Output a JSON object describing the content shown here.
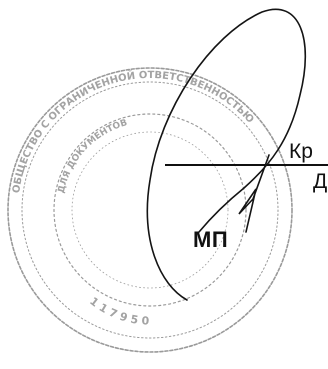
{
  "document": {
    "stamp_label": "МП",
    "name_fragment": "Кр",
    "second_line_fragment": "Д",
    "seal_text": "ОБЩЕСТВО С ОГРАНИЧЕННОЙ ОТВЕТСТВЕННОСТЬЮ",
    "seal_inner_text": "ДЛЯ ДОКУМЕНТОВ",
    "seal_digits": "1 1 7 9 5 0"
  },
  "colors": {
    "ink": "#111111",
    "stamp": "#9a9a9a",
    "paper": "#ffffff"
  }
}
